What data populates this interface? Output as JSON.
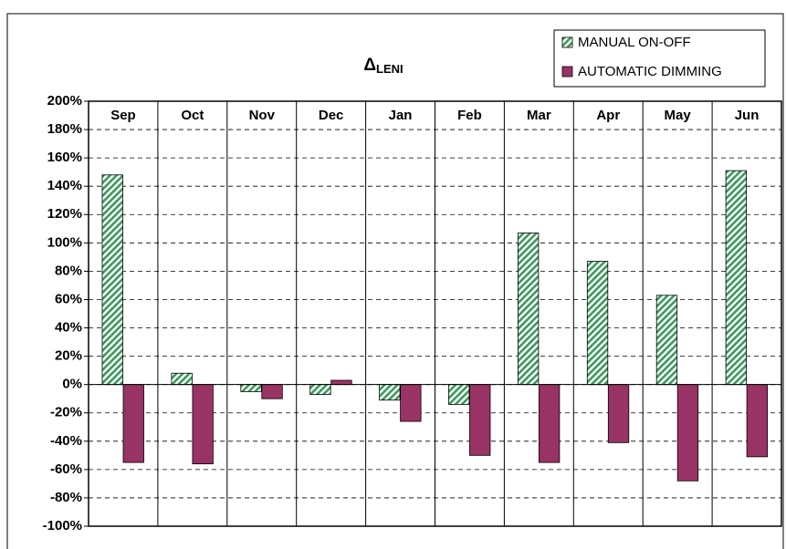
{
  "chart_data": {
    "type": "bar",
    "title": "Δ",
    "title_subscript": "LENI",
    "categories": [
      "Sep",
      "Oct",
      "Nov",
      "Dec",
      "Jan",
      "Feb",
      "Mar",
      "Apr",
      "May",
      "Jun"
    ],
    "series": [
      {
        "name": "MANUAL ON-OFF",
        "color": "#3a9a5a",
        "pattern": "hatch",
        "values": [
          148,
          8,
          -5,
          -7,
          -11,
          -14,
          107,
          87,
          63,
          151
        ]
      },
      {
        "name": "AUTOMATIC DIMMING",
        "color": "#993366",
        "values": [
          -55,
          -56,
          -10,
          3,
          -26,
          -50,
          -55,
          -41,
          -68,
          -51
        ]
      }
    ],
    "ylim": [
      -100,
      200
    ],
    "yticks": [
      {
        "value": -100,
        "label": "-100%"
      },
      {
        "value": -80,
        "label": "-80%"
      },
      {
        "value": -60,
        "label": "-60%"
      },
      {
        "value": -40,
        "label": "-40%"
      },
      {
        "value": -20,
        "label": "-20%"
      },
      {
        "value": 0,
        "label": "0%"
      },
      {
        "value": 20,
        "label": "20%"
      },
      {
        "value": 40,
        "label": "40%"
      },
      {
        "value": 60,
        "label": "60%"
      },
      {
        "value": 80,
        "label": "80%"
      },
      {
        "value": 100,
        "label": "100%"
      },
      {
        "value": 120,
        "label": "120%"
      },
      {
        "value": 140,
        "label": "140%"
      },
      {
        "value": 160,
        "label": "160%"
      },
      {
        "value": 180,
        "label": "180%"
      },
      {
        "value": 200,
        "label": "200%"
      }
    ],
    "grid": true,
    "legend": "top-right"
  }
}
